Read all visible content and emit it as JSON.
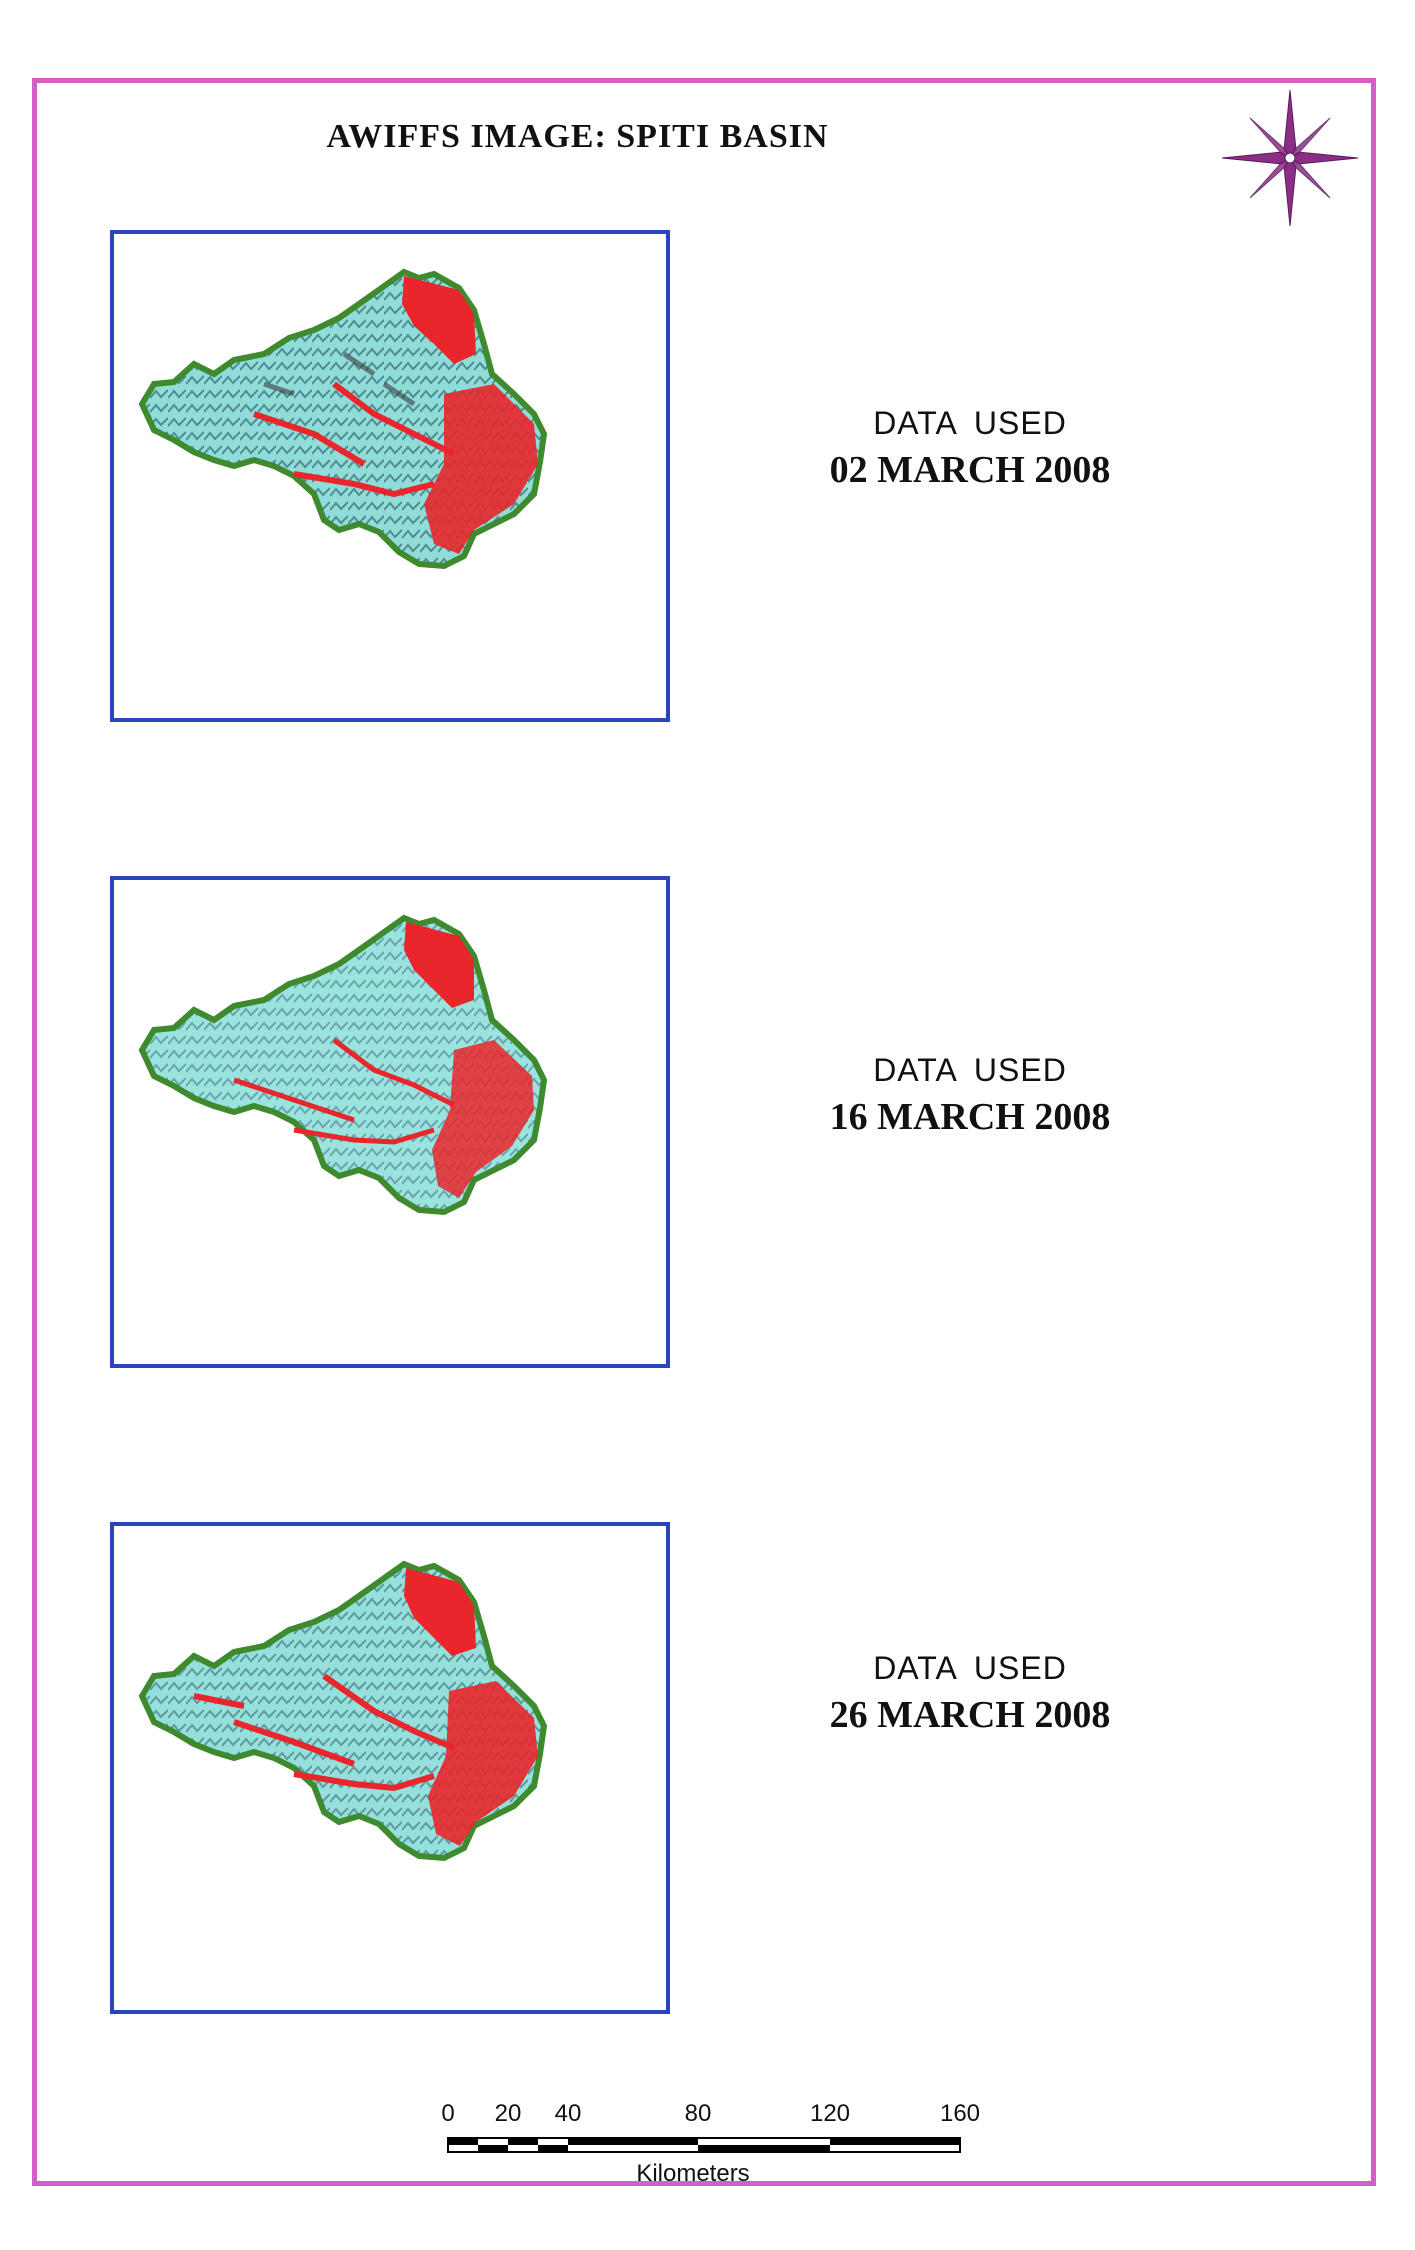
{
  "map": {
    "title": "AWIFFS IMAGE: SPITI BASIN",
    "compass": "north-arrow-compass-rose",
    "panels": [
      {
        "label": "DATA  USED",
        "date": "02 MARCH 2008"
      },
      {
        "label": "DATA  USED",
        "date": "16 MARCH 2008"
      },
      {
        "label": "DATA  USED",
        "date": "26 MARCH 2008"
      }
    ],
    "scale_bar": {
      "unit": "Kilometers",
      "ticks": [
        "0",
        "20",
        "40",
        "80",
        "120",
        "160"
      ]
    },
    "colors": {
      "frame": "#d35fc7",
      "panel_border": "#2b45b8",
      "basin_outline": "#3f8a2e",
      "snow": "#8fe0de",
      "non_snow": "#e8262b"
    }
  }
}
